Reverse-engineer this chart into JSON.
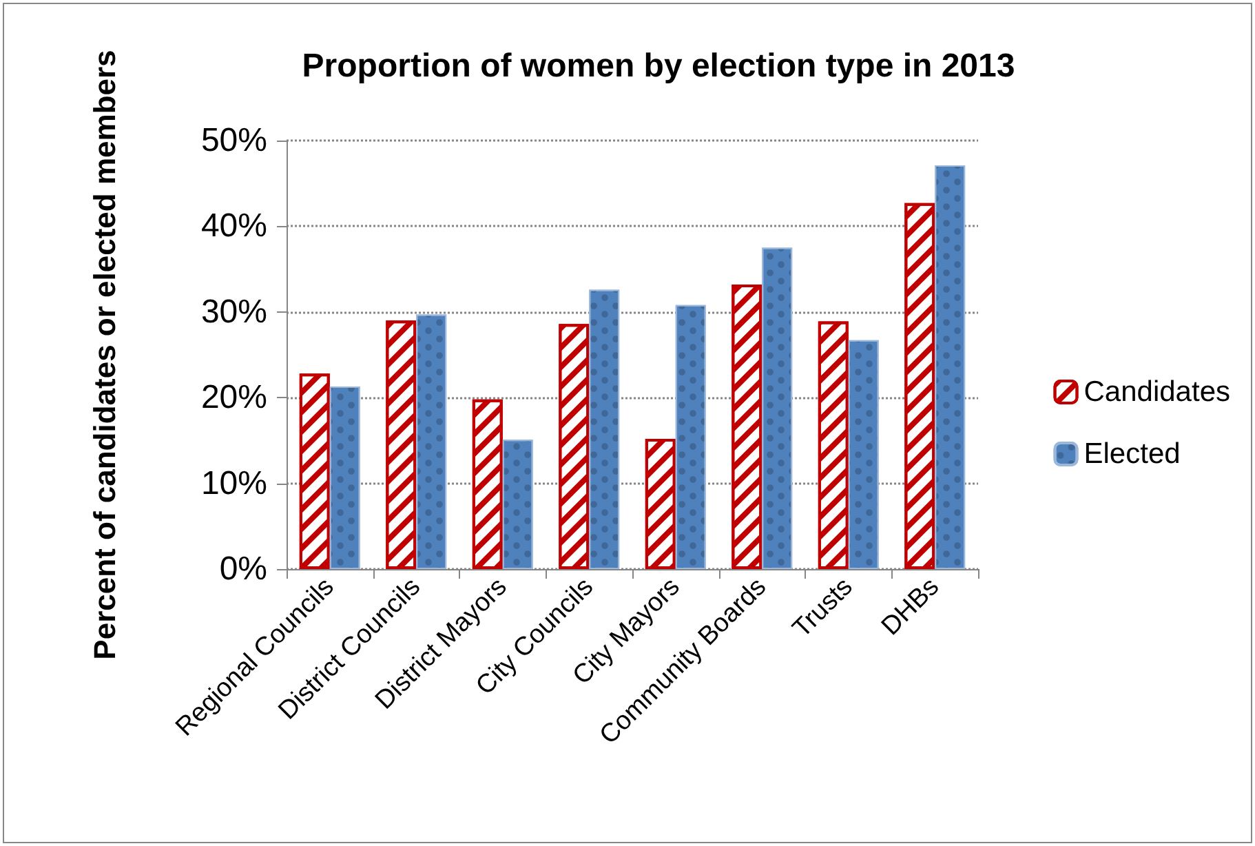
{
  "chart_data": {
    "type": "bar",
    "title": "Proportion of women by election type in 2013",
    "ylabel": "Percent of candidates or elected members",
    "categories": [
      "Regional Councils",
      "District Councils",
      "District Mayors",
      "City Councils",
      "City Mayors",
      "Community Boards",
      "Trusts",
      "DHBs"
    ],
    "series": [
      {
        "name": "Candidates",
        "color": "#c00000",
        "values": [
          22.8,
          29.0,
          19.8,
          28.6,
          15.2,
          33.2,
          28.9,
          42.7
        ]
      },
      {
        "name": "Elected",
        "color": "#4f81bd",
        "values": [
          21.3,
          29.7,
          15.1,
          32.6,
          30.8,
          37.5,
          26.7,
          47.1
        ]
      }
    ],
    "ylim": [
      0,
      50
    ],
    "yticks": [
      {
        "value": 0,
        "label": "0%"
      },
      {
        "value": 10,
        "label": "10%"
      },
      {
        "value": 20,
        "label": "20%"
      },
      {
        "value": 30,
        "label": "30%"
      },
      {
        "value": 40,
        "label": "40%"
      },
      {
        "value": 50,
        "label": "50%"
      }
    ],
    "grid": "y",
    "legend": "right"
  }
}
